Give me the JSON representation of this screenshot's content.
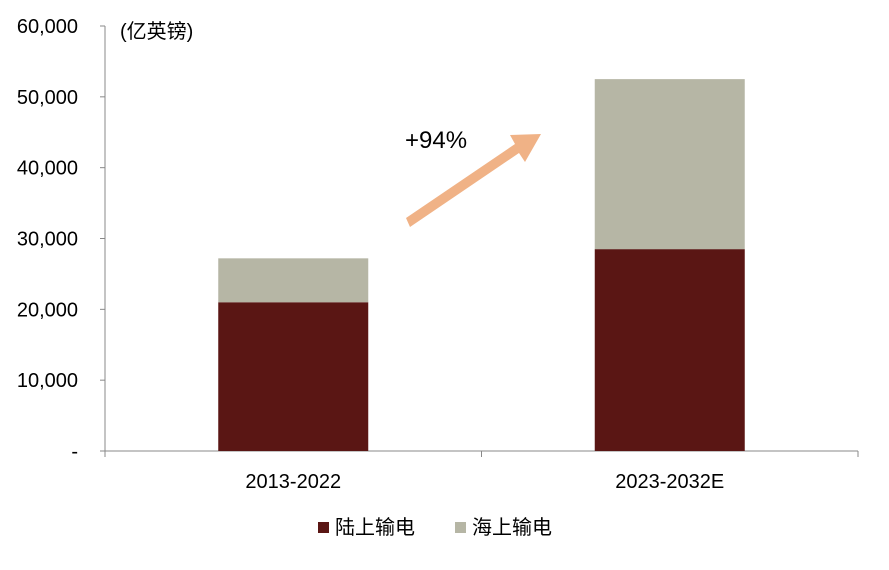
{
  "chart_data": {
    "type": "bar",
    "stacked": true,
    "unit_label": "(亿英镑)",
    "categories": [
      "2013-2022",
      "2023-2032E"
    ],
    "series": [
      {
        "name": "陆上输电",
        "values": [
          21000,
          28500
        ],
        "color": "#5a1614"
      },
      {
        "name": "海上输电",
        "values": [
          6200,
          24000
        ],
        "color": "#b6b6a5"
      }
    ],
    "y_ticks": [
      "-",
      "10,000",
      "20,000",
      "30,000",
      "40,000",
      "50,000",
      "60,000"
    ],
    "ylim": [
      0,
      60000
    ],
    "annotation": {
      "text": "+94%",
      "arrow_color": "#f0b286"
    },
    "grid": false,
    "legend_position": "bottom"
  }
}
